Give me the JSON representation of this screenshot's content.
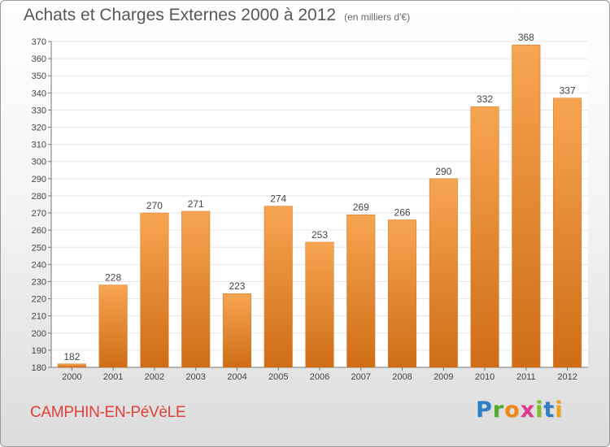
{
  "title": "Achats et Charges Externes 2000 à 2012",
  "unit_note": "(en milliers d'€)",
  "location": "CAMPHIN-EN-PéVèLE",
  "brand": {
    "letters": [
      "P",
      "r",
      "o",
      "x",
      "i",
      "t",
      "i"
    ],
    "colors": [
      "#2e7fc7",
      "#4cae2a",
      "#f08a12",
      "#e03a8c",
      "#7cbf2a",
      "#2e7fc7",
      "#f0a21a"
    ]
  },
  "colors": {
    "bar_top": "#f7a552",
    "bar_bottom": "#cf6d16",
    "city": "#e0403a",
    "grid": "#e6e6e6"
  },
  "chart_data": {
    "type": "bar",
    "categories": [
      "2000",
      "2001",
      "2002",
      "2003",
      "2004",
      "2005",
      "2006",
      "2007",
      "2008",
      "2009",
      "2010",
      "2011",
      "2012"
    ],
    "values": [
      182,
      228,
      270,
      271,
      223,
      274,
      253,
      269,
      266,
      290,
      332,
      368,
      337
    ],
    "ylim": [
      180,
      370
    ],
    "ytick_step": 10,
    "grid": true,
    "legend": "none"
  }
}
